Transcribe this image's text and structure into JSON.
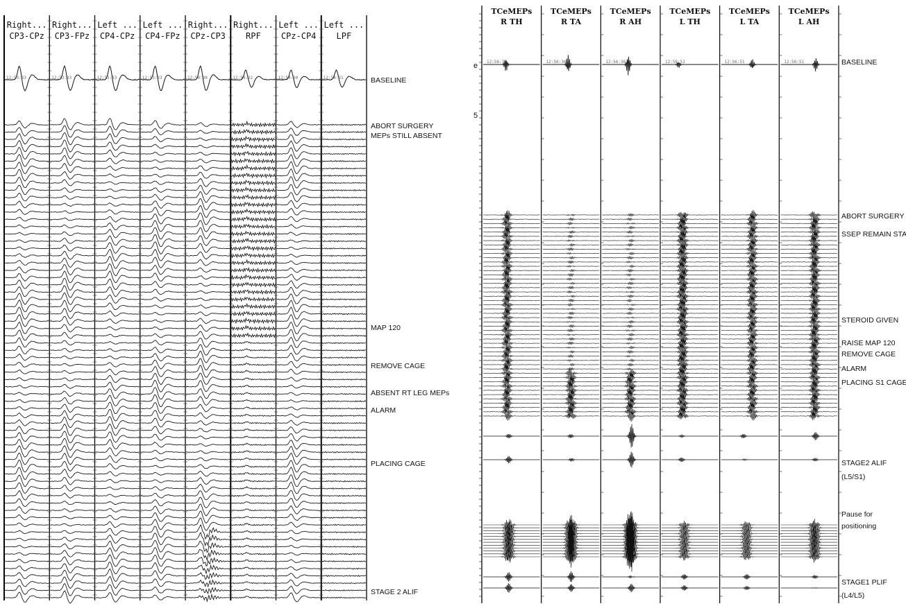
{
  "chart_data": [
    {
      "type": "line",
      "panel": "left",
      "channels": [
        {
          "line1": "Right...",
          "line2": "CP3-CPz",
          "timestamp": "12:53:33"
        },
        {
          "line1": "Right...",
          "line2": "CP3-FPz",
          "timestamp": "12:53:33"
        },
        {
          "line1": "Left ...",
          "line2": "CP4-CPz",
          "timestamp": "12:53:33"
        },
        {
          "line1": "Left ...",
          "line2": "CP4-FPz",
          "timestamp": "12:53:33"
        },
        {
          "line1": "Right...",
          "line2": "CPz-CP3",
          "timestamp": "12:54:30"
        },
        {
          "line1": "Right...",
          "line2": "RPF",
          "timestamp": "12:54:32"
        },
        {
          "line1": "Left ...",
          "line2": "CPz-CP4",
          "timestamp": "12:54:30"
        },
        {
          "line1": "Left ...",
          "line2": "LPF",
          "timestamp": "12:54:31"
        }
      ],
      "annotations": [
        {
          "text": "BASELINE"
        },
        {
          "text": "ABORT SURGERY"
        },
        {
          "text": "MEPs STILL ABSENT"
        },
        {
          "text": "MAP 120"
        },
        {
          "text": "REMOVE CAGE"
        },
        {
          "text": "ABSENT RT LEG MEPs"
        },
        {
          "text": "ALARM"
        },
        {
          "text": "PLACING CAGE"
        },
        {
          "text": "STAGE 2 ALIF"
        }
      ]
    },
    {
      "type": "line",
      "panel": "right",
      "channels": [
        {
          "line1": "TCeMEPs",
          "line2": "R TH",
          "timestamp": "12:56:36"
        },
        {
          "line1": "TCeMEPs",
          "line2": "R TA",
          "timestamp": "12:56:36"
        },
        {
          "line1": "TCeMEPs",
          "line2": "R AH",
          "timestamp": "12:56:36"
        },
        {
          "line1": "TCeMEPs",
          "line2": "L TH",
          "timestamp": "12:56:51"
        },
        {
          "line1": "TCeMEPs",
          "line2": "L TA",
          "timestamp": "12:56:51"
        },
        {
          "line1": "TCeMEPs",
          "line2": "L AH",
          "timestamp": "12:56:51"
        }
      ],
      "axis_marks": [
        "e",
        "5"
      ],
      "annotations": [
        {
          "text": "BASELINE"
        },
        {
          "text": "ABORT SURGERY"
        },
        {
          "text": "SSEP REMAIN STABLE"
        },
        {
          "text": "STEROID GIVEN"
        },
        {
          "text": "RAISE MAP 120"
        },
        {
          "text": "REMOVE CAGE"
        },
        {
          "text": "ALARM"
        },
        {
          "text": "PLACING S1 CAGE"
        },
        {
          "text": "STAGE2 ALIF"
        },
        {
          "text": "(L5/S1)"
        },
        {
          "text": "Pause for"
        },
        {
          "text": "positioning"
        },
        {
          "text": "STAGE1 PLIF"
        },
        {
          "text": "(L4/L5)"
        }
      ]
    }
  ]
}
